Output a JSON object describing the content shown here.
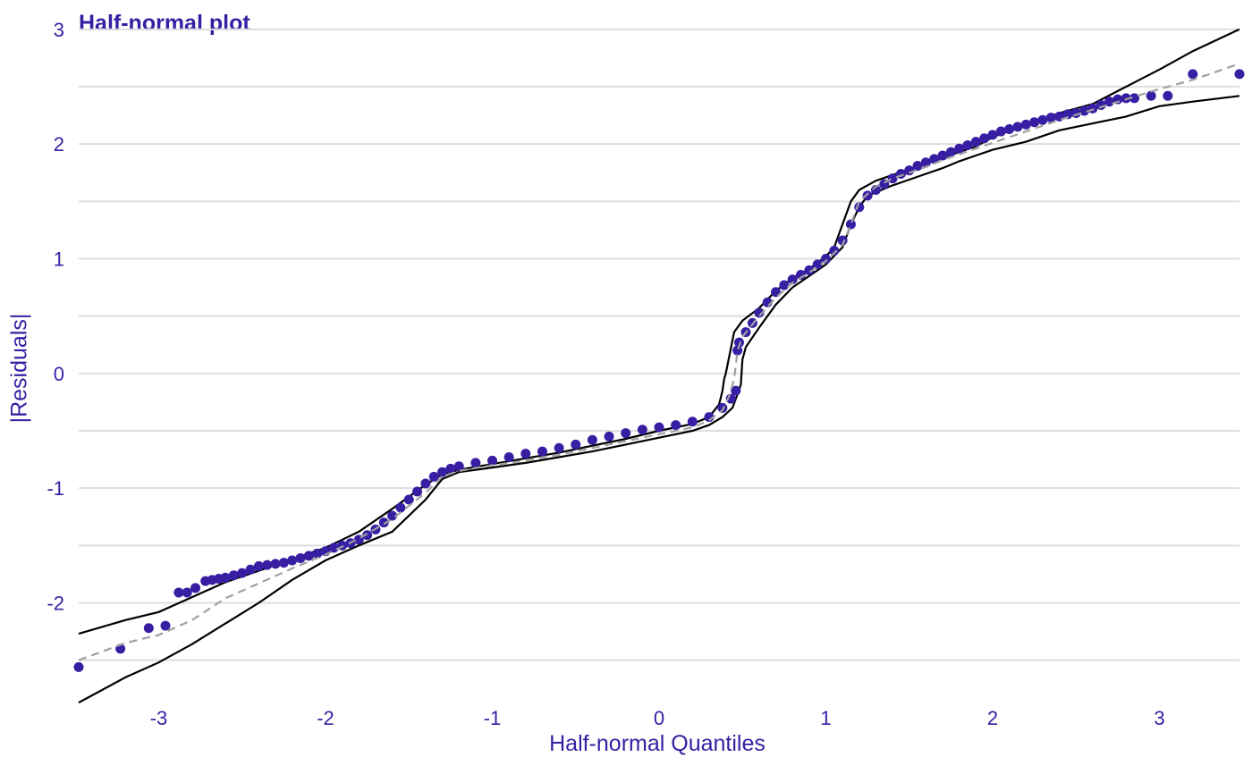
{
  "chart_data": {
    "type": "scatter",
    "title": "Half-normal plot",
    "xlabel": "Half-normal Quantiles",
    "ylabel": "|Residuals|",
    "xlim": [
      -3.48,
      3.48
    ],
    "ylim": [
      -2.9,
      3.1
    ],
    "xticks": [
      "-3",
      "-2",
      "-1",
      "0",
      "1",
      "2",
      "3"
    ],
    "yticks": [
      "-2",
      "-1",
      "0",
      "1",
      "2",
      "3"
    ],
    "grid": true,
    "legend": "none",
    "colors": {
      "points": "#371ea3",
      "envelope": "#000000",
      "median": "#a0a0a0",
      "text": "#371ea3",
      "grid": "#dedede"
    },
    "series": [
      {
        "role": "residuals",
        "style": "points",
        "x": [
          -3.48,
          -3.23,
          -3.06,
          -2.96,
          -2.88,
          -2.83,
          -2.78,
          -2.72,
          -2.68,
          -2.64,
          -2.6,
          -2.55,
          -2.5,
          -2.45,
          -2.4,
          -2.35,
          -2.3,
          -2.25,
          -2.2,
          -2.15,
          -2.1,
          -2.05,
          -2.0,
          -1.95,
          -1.9,
          -1.85,
          -1.8,
          -1.75,
          -1.7,
          -1.65,
          -1.6,
          -1.55,
          -1.5,
          -1.45,
          -1.4,
          -1.35,
          -1.3,
          -1.25,
          -1.2,
          -1.1,
          -1.0,
          -0.9,
          -0.8,
          -0.7,
          -0.6,
          -0.5,
          -0.4,
          -0.3,
          -0.2,
          -0.1,
          0.0,
          0.1,
          0.2,
          0.3,
          0.38,
          0.43,
          0.46,
          0.47,
          0.48,
          0.52,
          0.56,
          0.6,
          0.65,
          0.7,
          0.75,
          0.8,
          0.85,
          0.9,
          0.95,
          1.0,
          1.05,
          1.1,
          1.15,
          1.2,
          1.25,
          1.3,
          1.35,
          1.4,
          1.45,
          1.5,
          1.55,
          1.6,
          1.65,
          1.7,
          1.75,
          1.8,
          1.85,
          1.9,
          1.95,
          2.0,
          2.05,
          2.1,
          2.15,
          2.2,
          2.25,
          2.3,
          2.35,
          2.4,
          2.45,
          2.5,
          2.55,
          2.6,
          2.65,
          2.7,
          2.75,
          2.8,
          2.85,
          2.95,
          3.05,
          3.2,
          3.48
        ],
        "y": [
          -2.56,
          -2.4,
          -2.22,
          -2.2,
          -1.91,
          -1.91,
          -1.87,
          -1.81,
          -1.8,
          -1.79,
          -1.78,
          -1.76,
          -1.74,
          -1.71,
          -1.68,
          -1.67,
          -1.66,
          -1.65,
          -1.63,
          -1.61,
          -1.59,
          -1.57,
          -1.55,
          -1.52,
          -1.5,
          -1.48,
          -1.45,
          -1.41,
          -1.36,
          -1.3,
          -1.24,
          -1.17,
          -1.1,
          -1.03,
          -0.96,
          -0.9,
          -0.86,
          -0.83,
          -0.81,
          -0.78,
          -0.76,
          -0.73,
          -0.7,
          -0.68,
          -0.65,
          -0.62,
          -0.58,
          -0.55,
          -0.52,
          -0.49,
          -0.47,
          -0.45,
          -0.42,
          -0.38,
          -0.3,
          -0.22,
          -0.15,
          0.2,
          0.27,
          0.36,
          0.44,
          0.53,
          0.62,
          0.71,
          0.77,
          0.82,
          0.86,
          0.9,
          0.95,
          1.0,
          1.07,
          1.16,
          1.3,
          1.45,
          1.55,
          1.6,
          1.65,
          1.7,
          1.74,
          1.77,
          1.81,
          1.84,
          1.87,
          1.9,
          1.93,
          1.96,
          1.99,
          2.02,
          2.05,
          2.08,
          2.11,
          2.13,
          2.15,
          2.17,
          2.19,
          2.21,
          2.23,
          2.24,
          2.26,
          2.27,
          2.29,
          2.31,
          2.34,
          2.37,
          2.39,
          2.4,
          2.4,
          2.42,
          2.42,
          2.61,
          2.61
        ]
      },
      {
        "role": "envelope-upper",
        "style": "solid-line",
        "x": [
          -3.48,
          -3.2,
          -3.0,
          -2.8,
          -2.6,
          -2.4,
          -2.2,
          -2.0,
          -1.8,
          -1.6,
          -1.4,
          -1.3,
          -1.2,
          -1.0,
          -0.8,
          -0.6,
          -0.4,
          -0.2,
          0.0,
          0.2,
          0.3,
          0.36,
          0.38,
          0.39,
          0.4,
          0.45,
          0.5,
          0.6,
          0.7,
          0.8,
          0.9,
          1.0,
          1.05,
          1.1,
          1.15,
          1.2,
          1.3,
          1.4,
          1.5,
          1.6,
          1.7,
          1.8,
          1.9,
          2.0,
          2.2,
          2.4,
          2.6,
          2.8,
          3.0,
          3.2,
          3.48
        ],
        "y": [
          -2.27,
          -2.15,
          -2.08,
          -1.95,
          -1.82,
          -1.72,
          -1.62,
          -1.52,
          -1.38,
          -1.18,
          -0.97,
          -0.88,
          -0.84,
          -0.79,
          -0.74,
          -0.69,
          -0.63,
          -0.57,
          -0.5,
          -0.44,
          -0.38,
          -0.27,
          -0.15,
          -0.05,
          0.0,
          0.36,
          0.46,
          0.57,
          0.72,
          0.83,
          0.91,
          1.02,
          1.1,
          1.3,
          1.5,
          1.6,
          1.68,
          1.73,
          1.78,
          1.83,
          1.88,
          1.93,
          1.98,
          2.06,
          2.17,
          2.27,
          2.35,
          2.5,
          2.65,
          2.81,
          3.0
        ]
      },
      {
        "role": "envelope-lower",
        "style": "solid-line",
        "x": [
          -3.48,
          -3.2,
          -3.0,
          -2.8,
          -2.6,
          -2.4,
          -2.2,
          -2.0,
          -1.8,
          -1.6,
          -1.4,
          -1.3,
          -1.2,
          -1.0,
          -0.8,
          -0.6,
          -0.4,
          -0.2,
          0.0,
          0.2,
          0.3,
          0.38,
          0.44,
          0.49,
          0.5,
          0.52,
          0.6,
          0.7,
          0.8,
          0.9,
          1.0,
          1.1,
          1.15,
          1.2,
          1.25,
          1.3,
          1.4,
          1.5,
          1.6,
          1.7,
          1.8,
          1.9,
          2.0,
          2.2,
          2.4,
          2.6,
          2.8,
          3.0,
          3.2,
          3.48
        ],
        "y": [
          -2.87,
          -2.65,
          -2.52,
          -2.36,
          -2.18,
          -2.0,
          -1.8,
          -1.63,
          -1.5,
          -1.38,
          -1.1,
          -0.92,
          -0.86,
          -0.82,
          -0.78,
          -0.73,
          -0.68,
          -0.62,
          -0.56,
          -0.5,
          -0.45,
          -0.38,
          -0.3,
          -0.1,
          0.12,
          0.23,
          0.4,
          0.6,
          0.75,
          0.85,
          0.95,
          1.1,
          1.3,
          1.45,
          1.55,
          1.58,
          1.64,
          1.69,
          1.74,
          1.79,
          1.85,
          1.9,
          1.95,
          2.02,
          2.12,
          2.18,
          2.24,
          2.33,
          2.37,
          2.42
        ]
      },
      {
        "role": "envelope-median",
        "style": "dashed-line",
        "x": [
          -3.48,
          -3.2,
          -3.0,
          -2.8,
          -2.6,
          -2.4,
          -2.2,
          -2.0,
          -1.8,
          -1.6,
          -1.4,
          -1.3,
          -1.2,
          -1.0,
          -0.8,
          -0.6,
          -0.4,
          -0.2,
          0.0,
          0.2,
          0.3,
          0.38,
          0.42,
          0.45,
          0.47,
          0.5,
          0.6,
          0.7,
          0.8,
          0.9,
          1.0,
          1.1,
          1.15,
          1.2,
          1.3,
          1.4,
          1.5,
          1.6,
          1.7,
          1.8,
          1.9,
          2.0,
          2.2,
          2.4,
          2.6,
          2.8,
          3.0,
          3.2,
          3.48
        ],
        "y": [
          -2.5,
          -2.35,
          -2.28,
          -2.15,
          -1.96,
          -1.83,
          -1.7,
          -1.58,
          -1.44,
          -1.27,
          -1.04,
          -0.9,
          -0.85,
          -0.8,
          -0.76,
          -0.71,
          -0.65,
          -0.59,
          -0.53,
          -0.47,
          -0.41,
          -0.32,
          -0.2,
          -0.05,
          0.2,
          0.32,
          0.5,
          0.66,
          0.79,
          0.88,
          0.98,
          1.12,
          1.3,
          1.5,
          1.63,
          1.7,
          1.75,
          1.8,
          1.86,
          1.91,
          1.96,
          2.01,
          2.11,
          2.21,
          2.3,
          2.39,
          2.48,
          2.56,
          2.7
        ]
      }
    ]
  }
}
